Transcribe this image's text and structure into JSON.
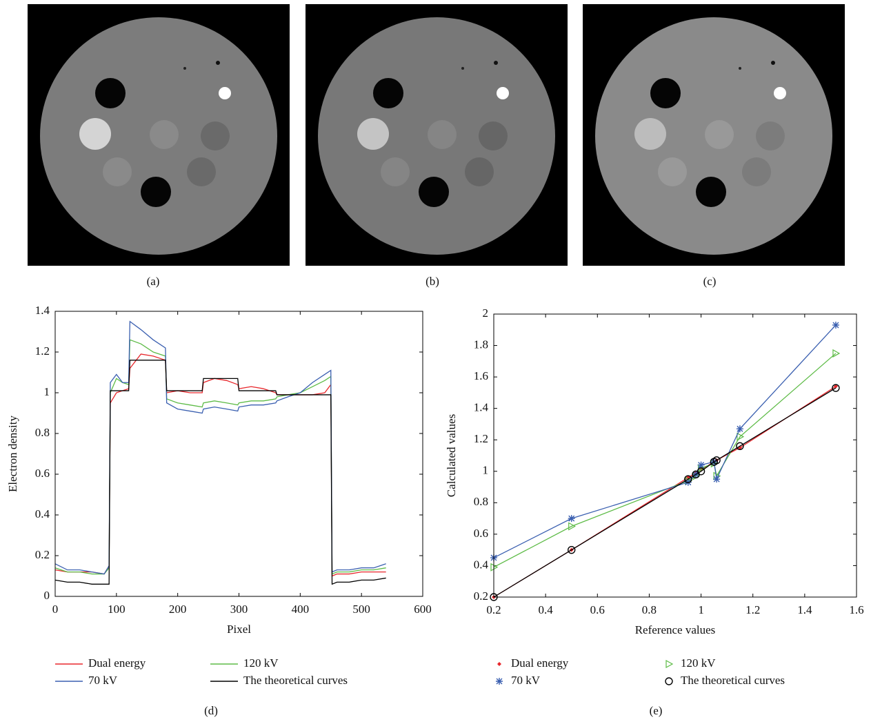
{
  "captions": [
    "(a)",
    "(b)",
    "(c)",
    "(d)",
    "(e)"
  ],
  "chart_data": [
    {
      "type": "line",
      "xlabel": "Pixel",
      "ylabel": "Electron density",
      "xlim": [
        0,
        600
      ],
      "xticks": [
        0,
        100,
        200,
        300,
        400,
        500,
        600
      ],
      "ylim": [
        0,
        1.4
      ],
      "yticks": [
        0,
        0.2,
        0.4,
        0.6,
        0.8,
        1,
        1.2,
        1.4
      ],
      "x": [
        0,
        20,
        40,
        60,
        80,
        88,
        90,
        100,
        110,
        120,
        122,
        140,
        160,
        180,
        182,
        200,
        220,
        240,
        242,
        260,
        280,
        298,
        300,
        320,
        340,
        360,
        362,
        380,
        400,
        420,
        440,
        450,
        452,
        460,
        480,
        500,
        520,
        540
      ],
      "series": [
        {
          "name": "Dual energy",
          "color": "#e8262b",
          "values": [
            0.13,
            0.12,
            0.12,
            0.12,
            0.11,
            0.15,
            0.95,
            1.0,
            1.01,
            1.02,
            1.12,
            1.19,
            1.18,
            1.16,
            1.0,
            1.01,
            1.0,
            1.0,
            1.05,
            1.07,
            1.06,
            1.04,
            1.02,
            1.03,
            1.02,
            1.0,
            0.99,
            0.99,
            0.99,
            0.99,
            1.0,
            1.04,
            0.1,
            0.11,
            0.11,
            0.12,
            0.12,
            0.12
          ]
        },
        {
          "name": "120 kV",
          "color": "#5dbb46",
          "values": [
            0.14,
            0.12,
            0.12,
            0.11,
            0.11,
            0.14,
            1.0,
            1.07,
            1.05,
            1.04,
            1.26,
            1.24,
            1.2,
            1.18,
            0.97,
            0.95,
            0.94,
            0.93,
            0.95,
            0.96,
            0.95,
            0.94,
            0.95,
            0.96,
            0.96,
            0.97,
            0.98,
            0.99,
            1.0,
            1.03,
            1.06,
            1.08,
            0.11,
            0.12,
            0.12,
            0.13,
            0.13,
            0.14
          ]
        },
        {
          "name": "70 kV",
          "color": "#3a5fb0",
          "values": [
            0.16,
            0.13,
            0.13,
            0.12,
            0.11,
            0.15,
            1.05,
            1.09,
            1.05,
            1.05,
            1.35,
            1.31,
            1.26,
            1.22,
            0.95,
            0.92,
            0.91,
            0.9,
            0.92,
            0.93,
            0.92,
            0.91,
            0.93,
            0.94,
            0.94,
            0.95,
            0.96,
            0.98,
            1.0,
            1.05,
            1.09,
            1.11,
            0.12,
            0.13,
            0.13,
            0.14,
            0.14,
            0.16
          ]
        },
        {
          "name": "The theoretical curves",
          "color": "#000000",
          "values": [
            0.08,
            0.07,
            0.07,
            0.06,
            0.06,
            0.06,
            1.01,
            1.01,
            1.01,
            1.01,
            1.16,
            1.16,
            1.16,
            1.16,
            1.01,
            1.01,
            1.01,
            1.01,
            1.07,
            1.07,
            1.07,
            1.07,
            1.01,
            1.01,
            1.01,
            1.01,
            0.99,
            0.99,
            0.99,
            0.99,
            0.99,
            0.99,
            0.06,
            0.07,
            0.07,
            0.08,
            0.08,
            0.09
          ]
        }
      ]
    },
    {
      "type": "line",
      "xlabel": "Reference values",
      "ylabel": "Calculated values",
      "xlim": [
        0.2,
        1.6
      ],
      "xticks": [
        0.2,
        0.4,
        0.6,
        0.8,
        1,
        1.2,
        1.4,
        1.6
      ],
      "ylim": [
        0.2,
        2
      ],
      "yticks": [
        0.2,
        0.4,
        0.6,
        0.8,
        1,
        1.2,
        1.4,
        1.6,
        1.8,
        2
      ],
      "x": [
        0.2,
        0.5,
        0.95,
        0.98,
        1.0,
        1.05,
        1.06,
        1.15,
        1.52
      ],
      "series": [
        {
          "name": "Dual energy",
          "color": "#e8262b",
          "marker": "dot",
          "values": [
            0.2,
            0.5,
            0.96,
            0.99,
            1.01,
            1.06,
            1.07,
            1.15,
            1.54
          ]
        },
        {
          "name": "120 kV",
          "color": "#5dbb46",
          "marker": "triangle",
          "values": [
            0.39,
            0.65,
            0.94,
            0.97,
            1.02,
            1.05,
            0.97,
            1.22,
            1.75
          ]
        },
        {
          "name": "70 kV",
          "color": "#3a5fb0",
          "marker": "star",
          "values": [
            0.45,
            0.7,
            0.93,
            0.98,
            1.04,
            1.06,
            0.95,
            1.27,
            1.93
          ]
        },
        {
          "name": "The theoretical curves",
          "color": "#000000",
          "marker": "circle",
          "values": [
            0.2,
            0.5,
            0.95,
            0.98,
            1.0,
            1.06,
            1.07,
            1.16,
            1.53
          ]
        }
      ]
    }
  ]
}
